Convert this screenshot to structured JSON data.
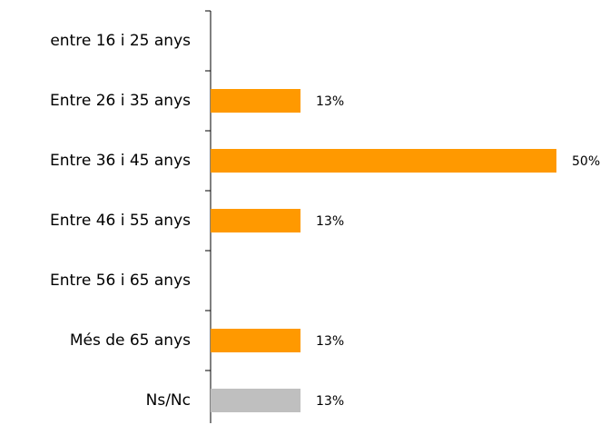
{
  "chart_data": {
    "type": "hbar",
    "categories": [
      "entre 16 i 25 anys",
      "Entre 26 i 35 anys",
      "Entre 36 i 45 anys",
      "Entre 46 i 55 anys",
      "Entre 56 i 65 anys",
      "Més de 65 anys",
      "Ns/Nc"
    ],
    "values": [
      0,
      13,
      50,
      13,
      0,
      13,
      13
    ],
    "value_labels": [
      null,
      "13%",
      "50%",
      "13%",
      null,
      "13%",
      "13%"
    ],
    "colors": [
      "#ff9900",
      "#ff9900",
      "#ff9900",
      "#ff9900",
      "#ff9900",
      "#ff9900",
      "#bfbfbf"
    ],
    "xlim": [
      0,
      50
    ]
  }
}
